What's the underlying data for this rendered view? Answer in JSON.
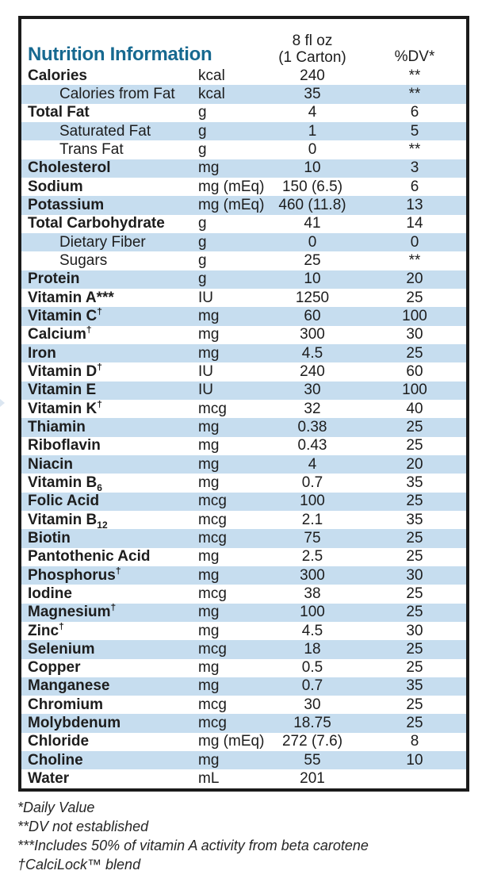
{
  "title": "Nutrition Information",
  "colors": {
    "accent_teal": "#176990",
    "row_alt_blue": "#C6DDEF",
    "border_black": "#1B1B1B"
  },
  "header": {
    "serving_line1": "8 fl oz",
    "serving_line2": "(1 Carton)",
    "dv_label": "%DV*"
  },
  "rows": [
    {
      "name": "Calories",
      "unit": "kcal",
      "value": "240",
      "dv": "**"
    },
    {
      "name": "Calories from Fat",
      "unit": "kcal",
      "value": "35",
      "dv": "**",
      "indent": true
    },
    {
      "name": "Total Fat",
      "unit": "g",
      "value": "4",
      "dv": "6"
    },
    {
      "name": "Saturated Fat",
      "unit": "g",
      "value": "1",
      "dv": "5",
      "indent": true
    },
    {
      "name": "Trans Fat",
      "unit": "g",
      "value": "0",
      "dv": "**",
      "indent": true
    },
    {
      "name": "Cholesterol",
      "unit": "mg",
      "value": "10",
      "dv": "3"
    },
    {
      "name": "Sodium",
      "unit": "mg (mEq)",
      "value": "150 (6.5)",
      "dv": "6"
    },
    {
      "name": "Potassium",
      "unit": "mg (mEq)",
      "value": "460 (11.8)",
      "dv": "13"
    },
    {
      "name": "Total Carbohydrate",
      "unit": "g",
      "value": "41",
      "dv": "14"
    },
    {
      "name": "Dietary Fiber",
      "unit": "g",
      "value": "0",
      "dv": "0",
      "indent": true
    },
    {
      "name": "Sugars",
      "unit": "g",
      "value": "25",
      "dv": "**",
      "indent": true
    },
    {
      "name": "Protein",
      "unit": "g",
      "value": "10",
      "dv": "20"
    },
    {
      "name": "Vitamin A***",
      "unit": "IU",
      "value": "1250",
      "dv": "25"
    },
    {
      "name": "Vitamin C",
      "sup": "†",
      "unit": "mg",
      "value": "60",
      "dv": "100"
    },
    {
      "name": "Calcium",
      "sup": "†",
      "unit": "mg",
      "value": "300",
      "dv": "30"
    },
    {
      "name": "Iron",
      "unit": "mg",
      "value": "4.5",
      "dv": "25"
    },
    {
      "name": "Vitamin D",
      "sup": "†",
      "unit": "IU",
      "value": "240",
      "dv": "60"
    },
    {
      "name": "Vitamin E",
      "unit": "IU",
      "value": "30",
      "dv": "100"
    },
    {
      "name": "Vitamin K",
      "sup": "†",
      "unit": "mcg",
      "value": "32",
      "dv": "40"
    },
    {
      "name": "Thiamin",
      "unit": "mg",
      "value": "0.38",
      "dv": "25"
    },
    {
      "name": "Riboflavin",
      "unit": "mg",
      "value": "0.43",
      "dv": "25"
    },
    {
      "name": "Niacin",
      "unit": "mg",
      "value": "4",
      "dv": "20"
    },
    {
      "name": "Vitamin B",
      "sub": "6",
      "unit": "mg",
      "value": "0.7",
      "dv": "35"
    },
    {
      "name": "Folic Acid",
      "unit": "mcg",
      "value": "100",
      "dv": "25"
    },
    {
      "name": "Vitamin B",
      "sub": "12",
      "unit": "mcg",
      "value": "2.1",
      "dv": "35"
    },
    {
      "name": "Biotin",
      "unit": "mcg",
      "value": "75",
      "dv": "25"
    },
    {
      "name": "Pantothenic Acid",
      "unit": "mg",
      "value": "2.5",
      "dv": "25"
    },
    {
      "name": "Phosphorus",
      "sup": "†",
      "unit": "mg",
      "value": "300",
      "dv": "30"
    },
    {
      "name": "Iodine",
      "unit": "mcg",
      "value": "38",
      "dv": "25"
    },
    {
      "name": "Magnesium",
      "sup": "†",
      "unit": "mg",
      "value": "100",
      "dv": "25"
    },
    {
      "name": "Zinc",
      "sup": "†",
      "unit": "mg",
      "value": "4.5",
      "dv": "30"
    },
    {
      "name": "Selenium",
      "unit": "mcg",
      "value": "18",
      "dv": "25"
    },
    {
      "name": "Copper",
      "unit": "mg",
      "value": "0.5",
      "dv": "25"
    },
    {
      "name": "Manganese",
      "unit": "mg",
      "value": "0.7",
      "dv": "35"
    },
    {
      "name": "Chromium",
      "unit": "mcg",
      "value": "30",
      "dv": "25"
    },
    {
      "name": "Molybdenum",
      "unit": "mcg",
      "value": "18.75",
      "dv": "25"
    },
    {
      "name": "Chloride",
      "unit": "mg (mEq)",
      "value": "272 (7.6)",
      "dv": "8"
    },
    {
      "name": "Choline",
      "unit": "mg",
      "value": "55",
      "dv": "10"
    },
    {
      "name": "Water",
      "unit": "mL",
      "value": "201",
      "dv": ""
    }
  ],
  "footnotes": [
    "*Daily Value",
    "**DV not established",
    "***Includes 50% of vitamin A activity from beta carotene",
    "†CalciLock™ blend"
  ]
}
